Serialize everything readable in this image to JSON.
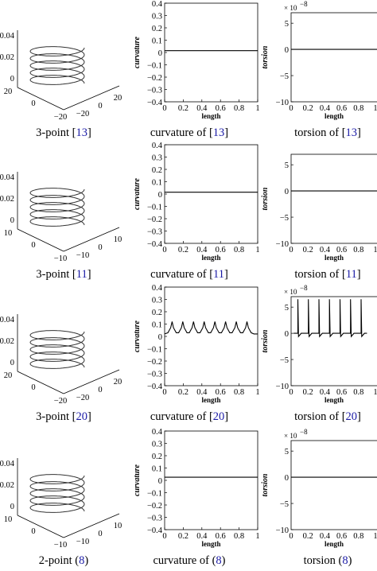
{
  "rows": [
    {
      "helix": {
        "z_ticks": [
          "0.04",
          "0.02",
          "0"
        ],
        "x_ticks": [
          "20",
          "0",
          "−20"
        ],
        "y_ticks": [
          "20",
          "0",
          "−20"
        ]
      },
      "captions": [
        {
          "text": "3-point [",
          "ref": "13",
          "end": "]"
        },
        {
          "text": "curvature of [",
          "ref": "13",
          "end": "]"
        },
        {
          "text": "torsion of [",
          "ref": "13",
          "end": "]"
        }
      ],
      "curvature": {
        "ylabel": "curvature",
        "xlabel": "length",
        "x_ticks": [
          "0",
          "0.2",
          "0.4",
          "0.6",
          "0.8",
          "1"
        ],
        "y_ticks": [
          "0.4",
          "0.3",
          "0.2",
          "0.1",
          "0",
          "−0.1",
          "−0.2",
          "−0.3",
          "−0.4"
        ],
        "kind": "flat",
        "level": 0.015
      },
      "torsion": {
        "ylabel": "torsion",
        "xlabel": "length",
        "x_ticks": [
          "0",
          "0.2",
          "0.4",
          "0.6",
          "0.8",
          "1"
        ],
        "y_ticks": [
          "5",
          "0",
          "−5",
          "−10"
        ],
        "scale": "× 10",
        "exp": "−8",
        "kind": "flat"
      }
    },
    {
      "helix": {
        "z_ticks": [
          "0.04",
          "0.02",
          "0"
        ],
        "x_ticks": [
          "10",
          "0",
          "−10"
        ],
        "y_ticks": [
          "10",
          "0",
          "−10"
        ]
      },
      "captions": [
        {
          "text": "3-point [",
          "ref": "11",
          "end": "]"
        },
        {
          "text": "curvature of [",
          "ref": "11",
          "end": "]"
        },
        {
          "text": "torsion of [",
          "ref": "11",
          "end": "]"
        }
      ],
      "curvature": {
        "ylabel": "curvature",
        "xlabel": "length",
        "x_ticks": [
          "0",
          "0.2",
          "0.4",
          "0.6",
          "0.8",
          "1"
        ],
        "y_ticks": [
          "0.4",
          "0.3",
          "0.2",
          "0.1",
          "0",
          "−0.1",
          "−0.2",
          "−0.3",
          "−0.4"
        ],
        "kind": "flat",
        "level": 0.015
      },
      "torsion": {
        "ylabel": "torsion",
        "xlabel": "length",
        "x_ticks": [
          "0",
          "0.2",
          "0.4",
          "0.6",
          "0.8",
          "1"
        ],
        "y_ticks": [
          "5",
          "0",
          "−5",
          "−10"
        ],
        "kind": "flat"
      }
    },
    {
      "helix": {
        "z_ticks": [
          "0.04",
          "0.02",
          "0"
        ],
        "x_ticks": [
          "20",
          "0",
          "−20"
        ],
        "y_ticks": [
          "20",
          "0",
          "−20"
        ]
      },
      "captions": [
        {
          "text": "3-point [",
          "ref": "20",
          "end": "]"
        },
        {
          "text": "curvature of [",
          "ref": "20",
          "end": "]"
        },
        {
          "text": "torsion of [",
          "ref": "20",
          "end": "]"
        }
      ],
      "curvature": {
        "ylabel": "curvature",
        "xlabel": "length",
        "x_ticks": [
          "0",
          "0.2",
          "0.4",
          "0.6",
          "0.8",
          "1"
        ],
        "y_ticks": [
          "0.4",
          "0.3",
          "0.2",
          "0.1",
          "0",
          "−0.1",
          "−0.2",
          "−0.3",
          "−0.4"
        ],
        "kind": "spiky",
        "level": 0.02
      },
      "torsion": {
        "ylabel": "torsion",
        "xlabel": "length",
        "x_ticks": [
          "0",
          "0.2",
          "0.4",
          "0.6",
          "0.8",
          "1"
        ],
        "y_ticks": [
          "5",
          "0",
          "−5",
          "−10"
        ],
        "scale": "× 10",
        "exp": "−8",
        "kind": "spiky"
      }
    },
    {
      "helix": {
        "z_ticks": [
          "0.04",
          "0.02",
          "0"
        ],
        "x_ticks": [
          "10",
          "0",
          "−10"
        ],
        "y_ticks": [
          "10",
          "0",
          "−10"
        ]
      },
      "captions": [
        {
          "text": "2-point (",
          "ref": "8",
          "end": ")"
        },
        {
          "text": "curvature of (",
          "ref": "8",
          "end": ")"
        },
        {
          "text": "torsion (",
          "ref": "8",
          "end": ")"
        }
      ],
      "curvature": {
        "ylabel": "curvature",
        "xlabel": "length",
        "x_ticks": [
          "0",
          "0.2",
          "0.4",
          "0.6",
          "0.8",
          "1"
        ],
        "y_ticks": [
          "0.4",
          "0.3",
          "0.2",
          "0.1",
          "0",
          "−0.1",
          "−0.2",
          "−0.3",
          "−0.4"
        ],
        "kind": "flat",
        "level": 0.025
      },
      "torsion": {
        "ylabel": "torsion",
        "xlabel": "length",
        "x_ticks": [
          "0",
          "0.2",
          "0.4",
          "0.6",
          "0.8",
          "1"
        ],
        "y_ticks": [
          "5",
          "0",
          "−5",
          "−10"
        ],
        "scale": "× 10",
        "exp": "−8",
        "kind": "flat"
      }
    }
  ]
}
